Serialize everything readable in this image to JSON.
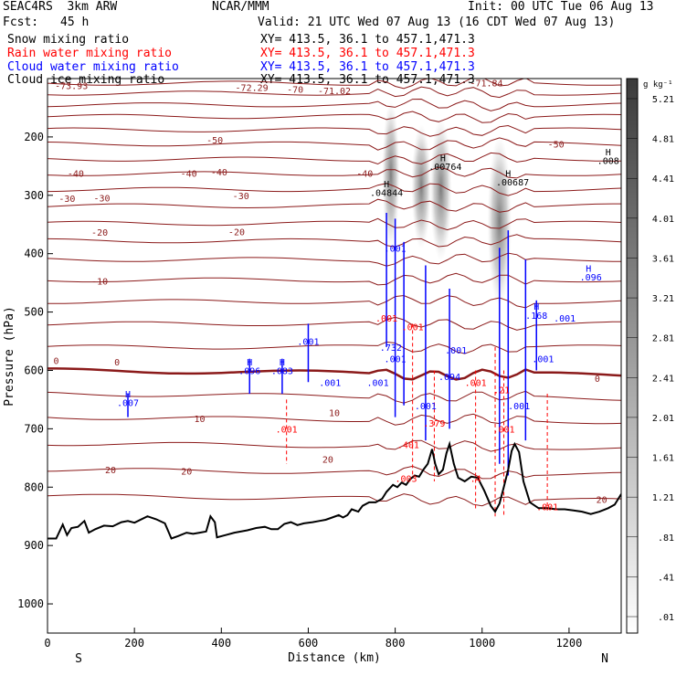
{
  "header": {
    "model": "SEAC4RS  3km ARW",
    "org": "NCAR/MMM",
    "init": "Init: 00 UTC Tue 06 Aug 13",
    "fcst_label": "Fcst:",
    "fcst_value": "45 h",
    "valid": "Valid: 21 UTC Wed 07 Aug 13 (16 CDT Wed 07 Aug 13)"
  },
  "fields": [
    {
      "name": "Snow mixing ratio",
      "xy": "XY= 413.5, 36.1 to 457.1,471.3",
      "color": "#000000"
    },
    {
      "name": "Rain water mixing ratio",
      "xy": "XY= 413.5, 36.1 to 457.1,471.3",
      "color": "#ff0000"
    },
    {
      "name": "Cloud water mixing ratio",
      "xy": "XY= 413.5, 36.1 to 457.1,471.3",
      "color": "#0000ff"
    },
    {
      "name": "Cloud ice mixing ratio",
      "xy": "XY= 413.5, 36.1 to 457.1,471.3",
      "color": "#000000"
    }
  ],
  "chart_data": {
    "type": "cross-section",
    "xlabel": "Distance (km)",
    "ylabel": "Pressure (hPa)",
    "xlim": [
      0,
      1320
    ],
    "ylim_pressure": [
      100,
      1050
    ],
    "y_inverted": true,
    "x_ticks": [
      0,
      200,
      400,
      600,
      800,
      1000,
      1200
    ],
    "y_ticks": [
      200,
      300,
      400,
      500,
      600,
      700,
      800,
      900,
      1000
    ],
    "end_labels": {
      "left": "S",
      "right": "N"
    },
    "colorbar": {
      "unit": "g kg⁻¹",
      "labels": [
        ".01",
        ".41",
        ".81",
        "1.21",
        "1.61",
        "2.01",
        "2.41",
        "2.81",
        "3.21",
        "3.61",
        "4.01",
        "4.41",
        "4.81",
        "5.21"
      ]
    },
    "temperature_contours": {
      "color": "#8b1a1a",
      "labels": [
        {
          "text": "-73.93",
          "x": 55,
          "p": 112
        },
        {
          "text": "-72.29",
          "x": 470,
          "p": 115
        },
        {
          "text": "-70",
          "x": 570,
          "p": 118
        },
        {
          "text": "-71.02",
          "x": 660,
          "p": 120
        },
        {
          "text": "-71.84",
          "x": 1010,
          "p": 107
        },
        {
          "text": "-50",
          "x": 385,
          "p": 205
        },
        {
          "text": "-50",
          "x": 1170,
          "p": 212
        },
        {
          "text": "-40",
          "x": 65,
          "p": 262
        },
        {
          "text": "-40",
          "x": 325,
          "p": 262
        },
        {
          "text": "-40",
          "x": 395,
          "p": 260
        },
        {
          "text": "-40",
          "x": 730,
          "p": 262
        },
        {
          "text": "-30",
          "x": 45,
          "p": 305
        },
        {
          "text": "-30",
          "x": 125,
          "p": 304
        },
        {
          "text": "-30",
          "x": 445,
          "p": 300
        },
        {
          "text": "-20",
          "x": 120,
          "p": 363
        },
        {
          "text": "-20",
          "x": 435,
          "p": 362
        },
        {
          "text": "-10",
          "x": 120,
          "p": 447
        },
        {
          "text": "0",
          "x": 20,
          "p": 583
        },
        {
          "text": "0",
          "x": 160,
          "p": 585
        },
        {
          "text": "0",
          "x": 1265,
          "p": 613
        },
        {
          "text": "10",
          "x": 350,
          "p": 682
        },
        {
          "text": "10",
          "x": 660,
          "p": 672
        },
        {
          "text": "20",
          "x": 145,
          "p": 770
        },
        {
          "text": "20",
          "x": 320,
          "p": 772
        },
        {
          "text": "20",
          "x": 645,
          "p": 752
        },
        {
          "text": "20",
          "x": 1275,
          "p": 821
        }
      ]
    },
    "cloud_water_labels": [
      {
        "text": "H",
        "x": 185,
        "p": 640
      },
      {
        "text": ".007",
        "x": 185,
        "p": 655
      },
      {
        "text": "H",
        "x": 465,
        "p": 585
      },
      {
        "text": ".096",
        "x": 465,
        "p": 600
      },
      {
        "text": "H",
        "x": 540,
        "p": 585
      },
      {
        "text": ".083",
        "x": 540,
        "p": 600
      },
      {
        "text": ".001",
        "x": 600,
        "p": 550
      },
      {
        "text": ".001",
        "x": 650,
        "p": 620
      },
      {
        "text": ".001",
        "x": 760,
        "p": 620
      },
      {
        "text": ".732",
        "x": 790,
        "p": 560
      },
      {
        "text": ".001",
        "x": 800,
        "p": 580
      },
      {
        "text": ".001",
        "x": 800,
        "p": 390
      },
      {
        "text": ".001",
        "x": 870,
        "p": 660
      },
      {
        "text": ".094",
        "x": 925,
        "p": 610
      },
      {
        "text": ".001",
        "x": 940,
        "p": 565
      },
      {
        "text": "H",
        "x": 1125,
        "p": 490
      },
      {
        "text": ".168",
        "x": 1125,
        "p": 505
      },
      {
        "text": ".001",
        "x": 1190,
        "p": 510
      },
      {
        "text": ".001",
        "x": 1140,
        "p": 580
      },
      {
        "text": "H",
        "x": 1245,
        "p": 425
      },
      {
        "text": ".096",
        "x": 1250,
        "p": 440
      },
      {
        "text": ".001",
        "x": 1085,
        "p": 660
      }
    ],
    "rain_labels": [
      {
        "text": ".001",
        "x": 550,
        "p": 700
      },
      {
        "text": ".001",
        "x": 840,
        "p": 525
      },
      {
        "text": ".379",
        "x": 890,
        "p": 690
      },
      {
        "text": ".401",
        "x": 830,
        "p": 727
      },
      {
        "text": ".001",
        "x": 985,
        "p": 620
      },
      {
        "text": ".001",
        "x": 1050,
        "p": 700
      },
      {
        "text": ".001",
        "x": 1150,
        "p": 833
      },
      {
        "text": ".21",
        "x": 1045,
        "p": 633
      },
      {
        "text": ".4",
        "x": 985,
        "p": 785
      },
      {
        "text": ".003",
        "x": 825,
        "p": 785
      },
      {
        "text": ".001",
        "x": 780,
        "p": 510
      }
    ],
    "snow_labels": [
      {
        "text": "H",
        "x": 910,
        "p": 235
      },
      {
        "text": ".00764",
        "x": 915,
        "p": 250
      },
      {
        "text": "H",
        "x": 1060,
        "p": 262
      },
      {
        "text": ".00687",
        "x": 1070,
        "p": 277
      },
      {
        "text": "H",
        "x": 1290,
        "p": 225
      },
      {
        "text": ".008",
        "x": 1290,
        "p": 240
      },
      {
        "text": "H",
        "x": 780,
        "p": 280
      },
      {
        "text": ".04844",
        "x": 780,
        "p": 295
      }
    ],
    "terrain_profile": [
      [
        0,
        888
      ],
      [
        20,
        888
      ],
      [
        35,
        864
      ],
      [
        45,
        882
      ],
      [
        55,
        870
      ],
      [
        70,
        868
      ],
      [
        85,
        858
      ],
      [
        95,
        878
      ],
      [
        110,
        872
      ],
      [
        130,
        866
      ],
      [
        150,
        867
      ],
      [
        170,
        860
      ],
      [
        185,
        858
      ],
      [
        200,
        861
      ],
      [
        230,
        850
      ],
      [
        250,
        855
      ],
      [
        270,
        862
      ],
      [
        285,
        888
      ],
      [
        300,
        884
      ],
      [
        320,
        878
      ],
      [
        335,
        880
      ],
      [
        350,
        878
      ],
      [
        365,
        876
      ],
      [
        375,
        850
      ],
      [
        385,
        860
      ],
      [
        390,
        886
      ],
      [
        410,
        882
      ],
      [
        430,
        878
      ],
      [
        460,
        874
      ],
      [
        480,
        870
      ],
      [
        500,
        868
      ],
      [
        515,
        872
      ],
      [
        530,
        872
      ],
      [
        545,
        863
      ],
      [
        560,
        860
      ],
      [
        575,
        865
      ],
      [
        590,
        862
      ],
      [
        610,
        860
      ],
      [
        625,
        858
      ],
      [
        640,
        856
      ],
      [
        655,
        852
      ],
      [
        670,
        848
      ],
      [
        680,
        852
      ],
      [
        690,
        848
      ],
      [
        700,
        838
      ],
      [
        715,
        842
      ],
      [
        725,
        832
      ],
      [
        740,
        826
      ],
      [
        755,
        826
      ],
      [
        770,
        820
      ],
      [
        780,
        808
      ],
      [
        795,
        796
      ],
      [
        805,
        800
      ],
      [
        815,
        792
      ],
      [
        825,
        796
      ],
      [
        835,
        786
      ],
      [
        845,
        780
      ],
      [
        855,
        782
      ],
      [
        865,
        770
      ],
      [
        875,
        760
      ],
      [
        885,
        735
      ],
      [
        892,
        760
      ],
      [
        900,
        778
      ],
      [
        910,
        770
      ],
      [
        918,
        742
      ],
      [
        925,
        726
      ],
      [
        935,
        760
      ],
      [
        945,
        784
      ],
      [
        960,
        790
      ],
      [
        975,
        782
      ],
      [
        990,
        784
      ],
      [
        1005,
        806
      ],
      [
        1020,
        832
      ],
      [
        1030,
        842
      ],
      [
        1040,
        828
      ],
      [
        1050,
        800
      ],
      [
        1060,
        770
      ],
      [
        1068,
        738
      ],
      [
        1075,
        726
      ],
      [
        1085,
        740
      ],
      [
        1095,
        790
      ],
      [
        1110,
        826
      ],
      [
        1130,
        836
      ],
      [
        1150,
        836
      ],
      [
        1170,
        838
      ],
      [
        1190,
        838
      ],
      [
        1210,
        840
      ],
      [
        1230,
        842
      ],
      [
        1250,
        846
      ],
      [
        1270,
        842
      ],
      [
        1290,
        836
      ],
      [
        1305,
        830
      ],
      [
        1320,
        812
      ]
    ]
  }
}
